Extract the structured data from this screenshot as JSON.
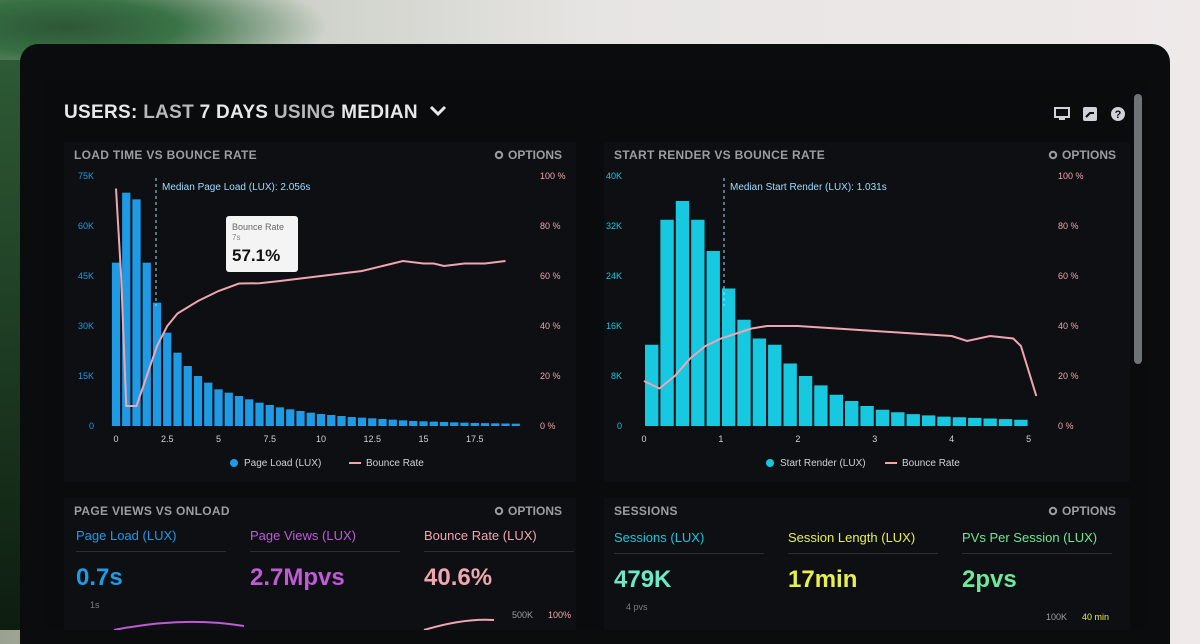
{
  "header": {
    "title_part1": "USERS:",
    "title_part2": "LAST",
    "title_part3": "7 DAYS",
    "title_part4": "USING",
    "title_part5": "MEDIAN"
  },
  "options_label": "OPTIONS",
  "colors": {
    "blue": "#1f9be6",
    "cyan": "#16c8e0",
    "pink": "#f0a5b2",
    "purple": "#c15ad8",
    "green": "#6ee89a",
    "yellow": "#e8f04a"
  },
  "chart_left": {
    "title": "LOAD TIME VS BOUNCE RATE",
    "median_label": "Median Page Load (LUX): 2.056s",
    "tooltip": {
      "title": "Bounce Rate",
      "sub": "7s",
      "value": "57.1%"
    },
    "legend": [
      "Page Load (LUX)",
      "Bounce Rate"
    ],
    "yticks_left": [
      "75K",
      "60K",
      "45K",
      "30K",
      "15K",
      "0"
    ],
    "yticks_right": [
      "100 %",
      "80 %",
      "60 %",
      "40 %",
      "20 %",
      "0 %"
    ],
    "xticks": [
      "0",
      "2.5",
      "5",
      "7.5",
      "10",
      "12.5",
      "15",
      "17.5"
    ]
  },
  "chart_right": {
    "title": "START RENDER VS BOUNCE RATE",
    "median_label": "Median Start Render (LUX): 1.031s",
    "legend": [
      "Start Render (LUX)",
      "Bounce Rate"
    ],
    "yticks_left": [
      "40K",
      "32K",
      "24K",
      "16K",
      "8K",
      "0"
    ],
    "yticks_right": [
      "100 %",
      "80 %",
      "60 %",
      "40 %",
      "20 %",
      "0 %"
    ],
    "xticks": [
      "0",
      "1",
      "2",
      "3",
      "4",
      "5"
    ]
  },
  "chart_data": [
    {
      "type": "bar",
      "title": "LOAD TIME VS BOUNCE RATE",
      "x": [
        0,
        0.5,
        1,
        1.5,
        2,
        2.5,
        3,
        3.5,
        4,
        4.5,
        5,
        5.5,
        6,
        6.5,
        7,
        7.5,
        8,
        8.5,
        9,
        9.5,
        10,
        10.5,
        11,
        11.5,
        12,
        12.5,
        13,
        13.5,
        14,
        14.5,
        15,
        15.5,
        16,
        16.5,
        17,
        17.5,
        18,
        18.5,
        19,
        19.5
      ],
      "series": [
        {
          "name": "Page Load (LUX)",
          "values": [
            49000,
            70000,
            68000,
            49000,
            37000,
            28000,
            22000,
            18000,
            15000,
            13000,
            11000,
            10000,
            9000,
            8000,
            7000,
            6300,
            5600,
            5000,
            4500,
            4000,
            3600,
            3300,
            3000,
            2700,
            2500,
            2300,
            2100,
            1900,
            1700,
            1500,
            1400,
            1300,
            1200,
            1100,
            1000,
            900,
            850,
            800,
            750,
            700
          ]
        },
        {
          "name": "Bounce Rate",
          "x": [
            0,
            0.25,
            0.5,
            1,
            1.5,
            2,
            2.5,
            3,
            4,
            5,
            6,
            7,
            8,
            9,
            10,
            11,
            12,
            13,
            14,
            15,
            15.5,
            16,
            17,
            18,
            19
          ],
          "values": [
            95,
            60,
            8,
            8,
            20,
            32,
            40,
            45,
            50,
            54,
            57,
            57.1,
            58,
            59,
            60,
            61,
            62,
            64,
            66,
            65,
            65,
            64,
            65,
            65,
            66
          ]
        }
      ],
      "xlim": [
        0,
        20
      ],
      "ylim": [
        0,
        75000
      ],
      "y2lim": [
        0,
        100
      ]
    },
    {
      "type": "bar",
      "title": "START RENDER VS BOUNCE RATE",
      "x": [
        0.1,
        0.3,
        0.5,
        0.7,
        0.9,
        1.1,
        1.3,
        1.5,
        1.7,
        1.9,
        2.1,
        2.3,
        2.5,
        2.7,
        2.9,
        3.1,
        3.3,
        3.5,
        3.7,
        3.9,
        4.1,
        4.3,
        4.5,
        4.7,
        4.9
      ],
      "series": [
        {
          "name": "Start Render (LUX)",
          "values": [
            13000,
            33000,
            36000,
            33000,
            28000,
            22000,
            17000,
            14000,
            13000,
            10000,
            8000,
            6500,
            5000,
            4000,
            3200,
            2600,
            2200,
            1900,
            1700,
            1500,
            1400,
            1300,
            1200,
            1100,
            1000
          ]
        },
        {
          "name": "Bounce Rate",
          "x": [
            0,
            0.2,
            0.4,
            0.6,
            0.8,
            1.0,
            1.2,
            1.4,
            1.6,
            1.8,
            2.0,
            2.5,
            3.0,
            3.5,
            4.0,
            4.2,
            4.5,
            4.8,
            4.9,
            5.1
          ],
          "values": [
            18,
            15,
            20,
            27,
            32,
            35,
            37,
            39,
            40,
            40,
            40,
            39,
            38,
            37,
            36,
            34,
            36,
            35,
            32,
            12
          ]
        }
      ],
      "xlim": [
        0,
        5.2
      ],
      "ylim": [
        0,
        40000
      ],
      "y2lim": [
        0,
        100
      ]
    }
  ],
  "bottom_left": {
    "title": "PAGE VIEWS VS ONLOAD",
    "metrics": [
      {
        "label": "Page Load (LUX)",
        "value": "0.7s",
        "sub": "1s"
      },
      {
        "label": "Page Views (LUX)",
        "value": "2.7Mpvs",
        "sub": ""
      },
      {
        "label": "Bounce Rate (LUX)",
        "value": "40.6%",
        "sub": ""
      }
    ],
    "right_ticks": [
      "500K",
      "100%"
    ]
  },
  "bottom_right": {
    "title": "SESSIONS",
    "metrics": [
      {
        "label": "Sessions (LUX)",
        "value": "479K",
        "sub": "4 pvs"
      },
      {
        "label": "Session Length (LUX)",
        "value": "17min",
        "sub": ""
      },
      {
        "label": "PVs Per Session (LUX)",
        "value": "2pvs",
        "sub": ""
      }
    ],
    "right_ticks": [
      "100K",
      "40 min"
    ]
  }
}
